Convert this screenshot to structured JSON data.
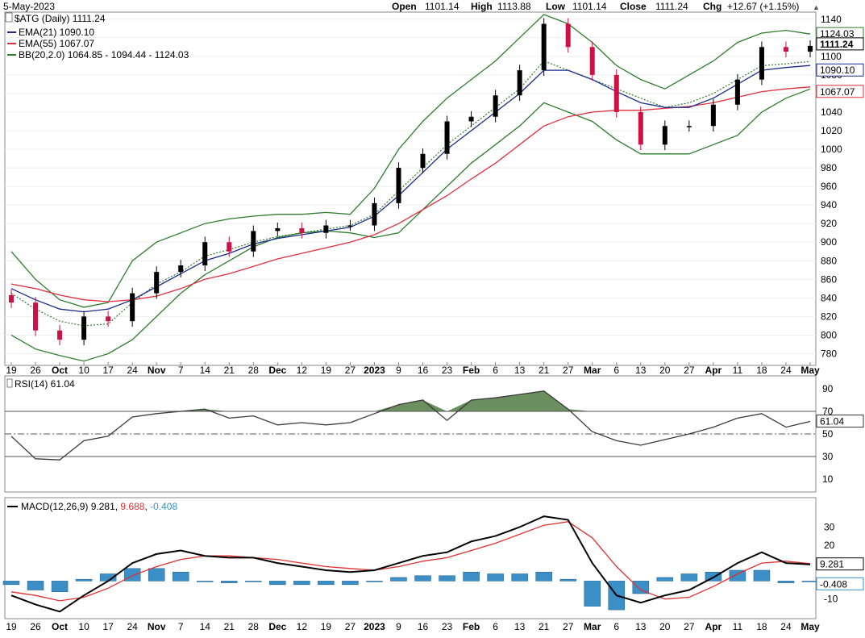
{
  "header": {
    "date": "5-May-2023",
    "open_label": "Open",
    "open": "1101.14",
    "high_label": "High",
    "high": "1113.88",
    "low_label": "Low",
    "low": "1101.14",
    "close_label": "Close",
    "close": "1111.24",
    "chg_label": "Chg",
    "chg": "+12.67 (+1.15%)",
    "chg_arrow": "▲"
  },
  "legend": {
    "symbol": "$ATG (Daily) 1111.24",
    "ema21": "EMA(21) 1090.10",
    "ema55": "EMA(55) 1067.07",
    "bb": "BB(20,2.0) 1064.85 - 1094.44 - 1124.03"
  },
  "badges": {
    "bb_upper": "1124.03",
    "bb_mid": "1094.44",
    "close": "1111.24",
    "ema21": "1090.10",
    "ema55": "1067.07",
    "rsi": "61.04",
    "macd": "9.281",
    "hist": "-0.408"
  },
  "rsi_legend": "RSI(14) 61.04",
  "macd_legend": {
    "label": "MACD(12,26,9)",
    "macd": "9.281",
    "signal": "9.688",
    "hist": "-0.408"
  },
  "x_axis": {
    "labels": [
      {
        "text": "19",
        "bold": false
      },
      {
        "text": "26",
        "bold": false
      },
      {
        "text": "Oct",
        "bold": true
      },
      {
        "text": "10",
        "bold": false
      },
      {
        "text": "17",
        "bold": false
      },
      {
        "text": "24",
        "bold": false
      },
      {
        "text": "Nov",
        "bold": true
      },
      {
        "text": "7",
        "bold": false
      },
      {
        "text": "14",
        "bold": false
      },
      {
        "text": "21",
        "bold": false
      },
      {
        "text": "28",
        "bold": false
      },
      {
        "text": "Dec",
        "bold": true
      },
      {
        "text": "12",
        "bold": false
      },
      {
        "text": "19",
        "bold": false
      },
      {
        "text": "27",
        "bold": false
      },
      {
        "text": "2023",
        "bold": true
      },
      {
        "text": "9",
        "bold": false
      },
      {
        "text": "16",
        "bold": false
      },
      {
        "text": "23",
        "bold": false
      },
      {
        "text": "Feb",
        "bold": true
      },
      {
        "text": "6",
        "bold": false
      },
      {
        "text": "13",
        "bold": false
      },
      {
        "text": "21",
        "bold": false
      },
      {
        "text": "27",
        "bold": false
      },
      {
        "text": "Mar",
        "bold": true
      },
      {
        "text": "6",
        "bold": false
      },
      {
        "text": "13",
        "bold": false
      },
      {
        "text": "20",
        "bold": false
      },
      {
        "text": "27",
        "bold": false
      },
      {
        "text": "Apr",
        "bold": true
      },
      {
        "text": "11",
        "bold": false
      },
      {
        "text": "18",
        "bold": false
      },
      {
        "text": "24",
        "bold": false
      },
      {
        "text": "May",
        "bold": true
      }
    ]
  },
  "chart_data": [
    {
      "type": "candlestick",
      "title": "$ATG (Daily) 1111.24",
      "ylim": [
        770,
        1145
      ],
      "y_ticks": [
        780,
        800,
        820,
        840,
        860,
        880,
        900,
        920,
        940,
        960,
        980,
        1000,
        1020,
        1040,
        1060,
        1080,
        1100,
        1120,
        1140
      ],
      "x": [
        "19",
        "26",
        "Oct",
        "10",
        "17",
        "24",
        "Nov",
        "7",
        "14",
        "21",
        "28",
        "Dec",
        "12",
        "19",
        "27",
        "2023",
        "9",
        "16",
        "23",
        "Feb",
        "6",
        "13",
        "21",
        "27",
        "Mar",
        "6",
        "13",
        "20",
        "27",
        "Apr",
        "11",
        "18",
        "24",
        "May"
      ],
      "close": [
        835,
        805,
        795,
        820,
        815,
        845,
        868,
        875,
        900,
        890,
        912,
        915,
        910,
        918,
        918,
        942,
        980,
        995,
        1030,
        1035,
        1058,
        1085,
        1135,
        1110,
        1080,
        1040,
        1005,
        1025,
        1025,
        1048,
        1075,
        1110,
        1105,
        1111.24
      ],
      "ema21": [
        850,
        838,
        828,
        825,
        828,
        838,
        852,
        866,
        880,
        888,
        898,
        904,
        908,
        912,
        916,
        928,
        950,
        975,
        1000,
        1020,
        1040,
        1060,
        1085,
        1085,
        1075,
        1062,
        1050,
        1045,
        1045,
        1055,
        1070,
        1085,
        1088,
        1090.1
      ],
      "ema55": [
        855,
        850,
        843,
        838,
        836,
        838,
        842,
        850,
        860,
        866,
        874,
        882,
        888,
        894,
        900,
        908,
        920,
        935,
        950,
        968,
        985,
        1005,
        1025,
        1035,
        1040,
        1042,
        1042,
        1044,
        1046,
        1050,
        1056,
        1062,
        1065,
        1067.07
      ],
      "bb_upper": [
        890,
        860,
        838,
        830,
        835,
        880,
        900,
        910,
        920,
        925,
        928,
        930,
        930,
        932,
        930,
        958,
        1000,
        1030,
        1055,
        1075,
        1095,
        1120,
        1145,
        1135,
        1115,
        1090,
        1075,
        1065,
        1080,
        1095,
        1115,
        1125,
        1128,
        1124.03
      ],
      "bb_mid": [
        845,
        828,
        815,
        810,
        812,
        835,
        855,
        868,
        885,
        892,
        900,
        906,
        910,
        914,
        918,
        930,
        955,
        980,
        1005,
        1025,
        1045,
        1065,
        1095,
        1085,
        1075,
        1065,
        1055,
        1045,
        1050,
        1060,
        1075,
        1090,
        1092,
        1094.44
      ],
      "bb_lower": [
        800,
        785,
        778,
        772,
        780,
        795,
        820,
        845,
        865,
        880,
        895,
        905,
        910,
        912,
        910,
        905,
        910,
        935,
        960,
        985,
        1005,
        1025,
        1050,
        1040,
        1030,
        1010,
        995,
        995,
        995,
        1005,
        1015,
        1040,
        1055,
        1064.85
      ],
      "legend": [
        "$ATG (Daily) 1111.24",
        "EMA(21) 1090.10",
        "EMA(55) 1067.07",
        "BB(20,2.0) 1064.85 - 1094.44 - 1124.03"
      ],
      "colors": {
        "up": "#000000",
        "down": "#cc1144",
        "ema21": "#1a2b8c",
        "ema55": "#e03040",
        "bb": "#2e7d2e"
      }
    },
    {
      "type": "line",
      "title": "RSI(14) 61.04",
      "ylim": [
        0,
        100
      ],
      "y_ticks": [
        10,
        30,
        50,
        70,
        90
      ],
      "reference_lines": [
        30,
        50,
        70
      ],
      "x": [
        "19",
        "26",
        "Oct",
        "10",
        "17",
        "24",
        "Nov",
        "7",
        "14",
        "21",
        "28",
        "Dec",
        "12",
        "19",
        "27",
        "2023",
        "9",
        "16",
        "23",
        "Feb",
        "6",
        "13",
        "21",
        "27",
        "Mar",
        "6",
        "13",
        "20",
        "27",
        "Apr",
        "11",
        "18",
        "24",
        "May"
      ],
      "values": [
        48,
        28,
        27,
        44,
        48,
        65,
        68,
        70,
        72,
        64,
        66,
        58,
        60,
        58,
        60,
        68,
        76,
        80,
        62,
        80,
        82,
        85,
        88,
        72,
        52,
        44,
        40,
        45,
        50,
        56,
        64,
        68,
        56,
        61.04
      ],
      "fill_above": 70,
      "colors": {
        "line": "#3a3a3a",
        "fill": "#6b8f5e"
      }
    },
    {
      "type": "line",
      "title": "MACD(12,26,9) 9.281, 9.688, -0.408",
      "ylim": [
        -20,
        45
      ],
      "y_ticks": [
        -10,
        10,
        20,
        30
      ],
      "x": [
        "19",
        "26",
        "Oct",
        "10",
        "17",
        "24",
        "Nov",
        "7",
        "14",
        "21",
        "28",
        "Dec",
        "12",
        "19",
        "27",
        "2023",
        "9",
        "16",
        "23",
        "Feb",
        "6",
        "13",
        "21",
        "27",
        "Mar",
        "6",
        "13",
        "20",
        "27",
        "Apr",
        "11",
        "18",
        "24",
        "May"
      ],
      "series": [
        {
          "name": "MACD(12,26,9)",
          "values": [
            -8,
            -13,
            -17,
            -8,
            0,
            10,
            15,
            17,
            14,
            13,
            13,
            10,
            8,
            6,
            5,
            6,
            10,
            14,
            16,
            22,
            25,
            30,
            36,
            34,
            10,
            -8,
            -12,
            -8,
            -5,
            2,
            10,
            16,
            10,
            9.281
          ]
        },
        {
          "name": "Signal",
          "values": [
            -6,
            -8,
            -11,
            -9,
            -4,
            3,
            8,
            12,
            14,
            14,
            13,
            12,
            10,
            8,
            7,
            6,
            8,
            11,
            13,
            17,
            21,
            26,
            31,
            33,
            24,
            8,
            -5,
            -10,
            -9,
            -3,
            4,
            10,
            11,
            9.688
          ]
        },
        {
          "name": "Histogram",
          "values": [
            -2,
            -5,
            -6,
            1,
            4,
            7,
            7,
            5,
            0,
            -1,
            0,
            -2,
            -2,
            -2,
            -2,
            0,
            2,
            3,
            3,
            5,
            4,
            4,
            5,
            1,
            -14,
            -16,
            -7,
            2,
            4,
            5,
            6,
            6,
            -1,
            -0.408
          ]
        }
      ],
      "colors": {
        "macd": "#000000",
        "signal": "#e03030",
        "hist": "#3b8fc6"
      }
    }
  ]
}
